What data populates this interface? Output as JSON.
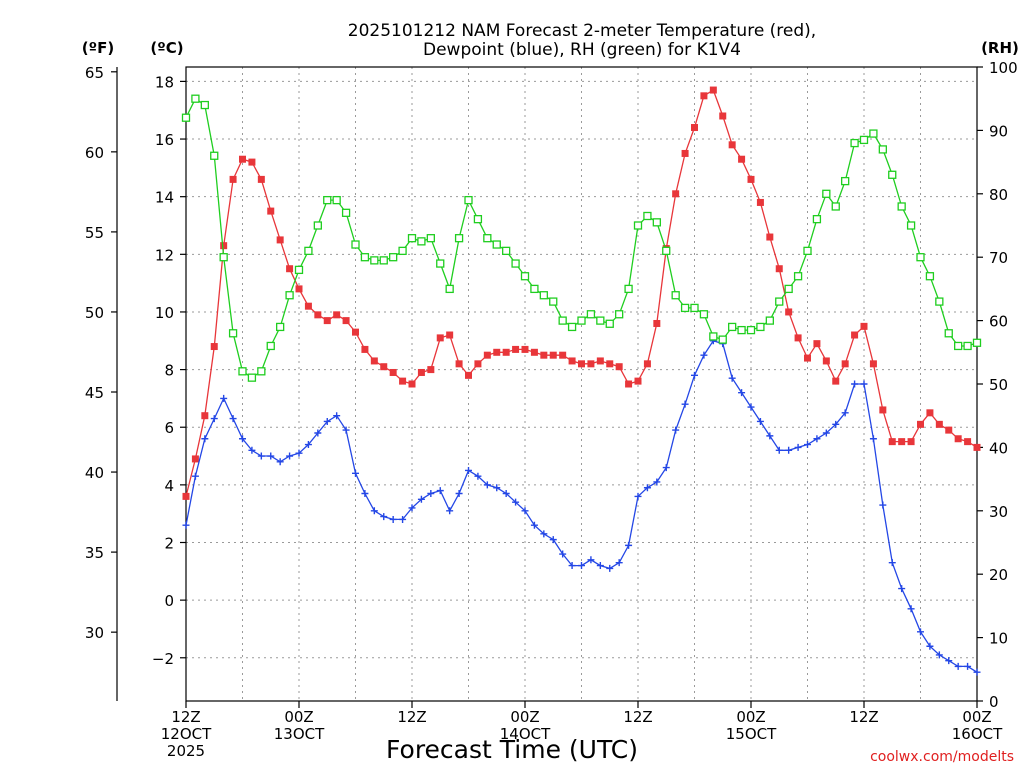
{
  "chart_data": {
    "type": "line",
    "title_line1": "2025101212 NAM Forecast 2-meter Temperature (red),",
    "title_line2": "Dewpoint (blue), RH (green) for K1V4",
    "left_axis_f_label": "(ºF)",
    "left_axis_c_label": "(ºC)",
    "right_axis_label": "(RH)",
    "xlabel": "Forecast Time (UTC)",
    "credit": "coolwx.com/modelts",
    "x_range_hours": [
      0,
      84
    ],
    "x_ticks": [
      {
        "hour": 0,
        "line1": "12Z",
        "line2": "12OCT",
        "line3": "2025"
      },
      {
        "hour": 12,
        "line1": "00Z",
        "line2": "13OCT",
        "line3": ""
      },
      {
        "hour": 24,
        "line1": "12Z",
        "line2": "",
        "line3": ""
      },
      {
        "hour": 36,
        "line1": "00Z",
        "line2": "14OCT",
        "line3": ""
      },
      {
        "hour": 48,
        "line1": "12Z",
        "line2": "",
        "line3": ""
      },
      {
        "hour": 60,
        "line1": "00Z",
        "line2": "15OCT",
        "line3": ""
      },
      {
        "hour": 72,
        "line1": "12Z",
        "line2": "",
        "line3": ""
      },
      {
        "hour": 84,
        "line1": "00Z",
        "line2": "16OCT",
        "line3": ""
      }
    ],
    "celsius_range": [
      -3.5,
      18.5
    ],
    "celsius_ticks": [
      "18",
      "16",
      "14",
      "12",
      "10",
      "8",
      "6",
      "4",
      "2",
      "0",
      "−2"
    ],
    "celsius_tick_values": [
      18,
      16,
      14,
      12,
      10,
      8,
      6,
      4,
      2,
      0,
      -2
    ],
    "fahrenheit_ticks": [
      "65",
      "60",
      "55",
      "50",
      "45",
      "40",
      "35",
      "30"
    ],
    "fahrenheit_tick_values": [
      65,
      60,
      55,
      50,
      45,
      40,
      35,
      30
    ],
    "rh_range": [
      0,
      100
    ],
    "rh_ticks": [
      "100",
      "90",
      "80",
      "70",
      "60",
      "50",
      "40",
      "30",
      "20",
      "10",
      "0"
    ],
    "rh_tick_values": [
      100,
      90,
      80,
      70,
      60,
      50,
      40,
      30,
      20,
      10,
      0
    ],
    "series": [
      {
        "name": "Temperature",
        "units": "C",
        "color": "#e8363a",
        "marker": "filled-square",
        "x_hours": [
          0,
          1,
          2,
          3,
          4,
          5,
          6,
          7,
          8,
          9,
          10,
          11,
          12,
          13,
          14,
          15,
          16,
          17,
          18,
          19,
          20,
          21,
          22,
          23,
          24,
          25,
          26,
          27,
          28,
          29,
          30,
          31,
          32,
          33,
          34,
          35,
          36,
          37,
          38,
          39,
          40,
          41,
          42,
          43,
          44,
          45,
          46,
          47,
          48,
          49,
          50,
          51,
          52,
          53,
          54,
          55,
          56,
          57,
          58,
          59,
          60,
          61,
          62,
          63,
          64,
          65,
          66,
          67,
          68,
          69,
          70,
          71,
          72,
          73,
          74,
          75,
          76,
          77,
          78,
          79,
          80,
          81,
          82,
          83,
          84
        ],
        "values": [
          3.6,
          4.9,
          6.4,
          8.8,
          12.3,
          14.6,
          15.3,
          15.2,
          14.6,
          13.5,
          12.5,
          11.5,
          10.8,
          10.2,
          9.9,
          9.7,
          9.9,
          9.7,
          9.3,
          8.7,
          8.3,
          8.1,
          7.9,
          7.6,
          7.5,
          7.9,
          8.0,
          9.1,
          9.2,
          8.2,
          7.8,
          8.2,
          8.5,
          8.6,
          8.6,
          8.7,
          8.7,
          8.6,
          8.5,
          8.5,
          8.5,
          8.3,
          8.2,
          8.2,
          8.3,
          8.2,
          8.1,
          7.5,
          7.6,
          8.2,
          9.6,
          12.2,
          14.1,
          15.5,
          16.4,
          17.5,
          17.7,
          16.8,
          15.8,
          15.3,
          14.6,
          13.8,
          12.6,
          11.5,
          10.0,
          9.1,
          8.4,
          8.9,
          8.3,
          7.6,
          8.2,
          9.2,
          9.5,
          8.2,
          6.6,
          5.5,
          5.5,
          5.5,
          6.1,
          6.5,
          6.1,
          5.9,
          5.6,
          5.5,
          5.3
        ]
      },
      {
        "name": "Dewpoint",
        "units": "C",
        "color": "#2447e6",
        "marker": "plus",
        "x_hours": [
          0,
          1,
          2,
          3,
          4,
          5,
          6,
          7,
          8,
          9,
          10,
          11,
          12,
          13,
          14,
          15,
          16,
          17,
          18,
          19,
          20,
          21,
          22,
          23,
          24,
          25,
          26,
          27,
          28,
          29,
          30,
          31,
          32,
          33,
          34,
          35,
          36,
          37,
          38,
          39,
          40,
          41,
          42,
          43,
          44,
          45,
          46,
          47,
          48,
          49,
          50,
          51,
          52,
          53,
          54,
          55,
          56,
          57,
          58,
          59,
          60,
          61,
          62,
          63,
          64,
          65,
          66,
          67,
          68,
          69,
          70,
          71,
          72,
          73,
          74,
          75,
          76,
          77,
          78,
          79,
          80,
          81,
          82,
          83,
          84
        ],
        "values": [
          2.6,
          4.3,
          5.6,
          6.3,
          7.0,
          6.3,
          5.6,
          5.2,
          5.0,
          5.0,
          4.8,
          5.0,
          5.1,
          5.4,
          5.8,
          6.2,
          6.4,
          5.9,
          4.4,
          3.7,
          3.1,
          2.9,
          2.8,
          2.8,
          3.2,
          3.5,
          3.7,
          3.8,
          3.1,
          3.7,
          4.5,
          4.3,
          4.0,
          3.9,
          3.7,
          3.4,
          3.1,
          2.6,
          2.3,
          2.1,
          1.6,
          1.2,
          1.2,
          1.4,
          1.2,
          1.1,
          1.3,
          1.9,
          3.6,
          3.9,
          4.1,
          4.6,
          5.9,
          6.8,
          7.8,
          8.5,
          9.0,
          8.9,
          7.7,
          7.2,
          6.7,
          6.2,
          5.7,
          5.2,
          5.2,
          5.3,
          5.4,
          5.6,
          5.8,
          6.1,
          6.5,
          7.5,
          7.5,
          5.6,
          3.3,
          1.3,
          0.4,
          -0.3,
          -1.1,
          -1.6,
          -1.9,
          -2.1,
          -2.3,
          -2.3,
          -2.5
        ]
      },
      {
        "name": "RH",
        "units": "%",
        "color": "#1fce1f",
        "marker": "open-square",
        "x_hours": [
          0,
          1,
          2,
          3,
          4,
          5,
          6,
          7,
          8,
          9,
          10,
          11,
          12,
          13,
          14,
          15,
          16,
          17,
          18,
          19,
          20,
          21,
          22,
          23,
          24,
          25,
          26,
          27,
          28,
          29,
          30,
          31,
          32,
          33,
          34,
          35,
          36,
          37,
          38,
          39,
          40,
          41,
          42,
          43,
          44,
          45,
          46,
          47,
          48,
          49,
          50,
          51,
          52,
          53,
          54,
          55,
          56,
          57,
          58,
          59,
          60,
          61,
          62,
          63,
          64,
          65,
          66,
          67,
          68,
          69,
          70,
          71,
          72,
          73,
          74,
          75,
          76,
          77,
          78,
          79,
          80,
          81,
          82,
          83,
          84
        ],
        "values": [
          92,
          95,
          94,
          86,
          70,
          58,
          52,
          51,
          52,
          56,
          59,
          64,
          68,
          71,
          75,
          79,
          79,
          77,
          72,
          70,
          69.5,
          69.5,
          70,
          71,
          73,
          72.5,
          73,
          69,
          65,
          73,
          79,
          76,
          73,
          72,
          71,
          69,
          67,
          65,
          64,
          63,
          60,
          59,
          60,
          61,
          60,
          59.5,
          61,
          65,
          75,
          76.5,
          75.5,
          71,
          64,
          62,
          62,
          61,
          57.5,
          57,
          59,
          58.5,
          58.5,
          59,
          60,
          63,
          65,
          67,
          71,
          76,
          80,
          78,
          82,
          88,
          88.5,
          89.5,
          87,
          83,
          78,
          75,
          70,
          67,
          63,
          58,
          56,
          56,
          56.5
        ]
      }
    ]
  }
}
